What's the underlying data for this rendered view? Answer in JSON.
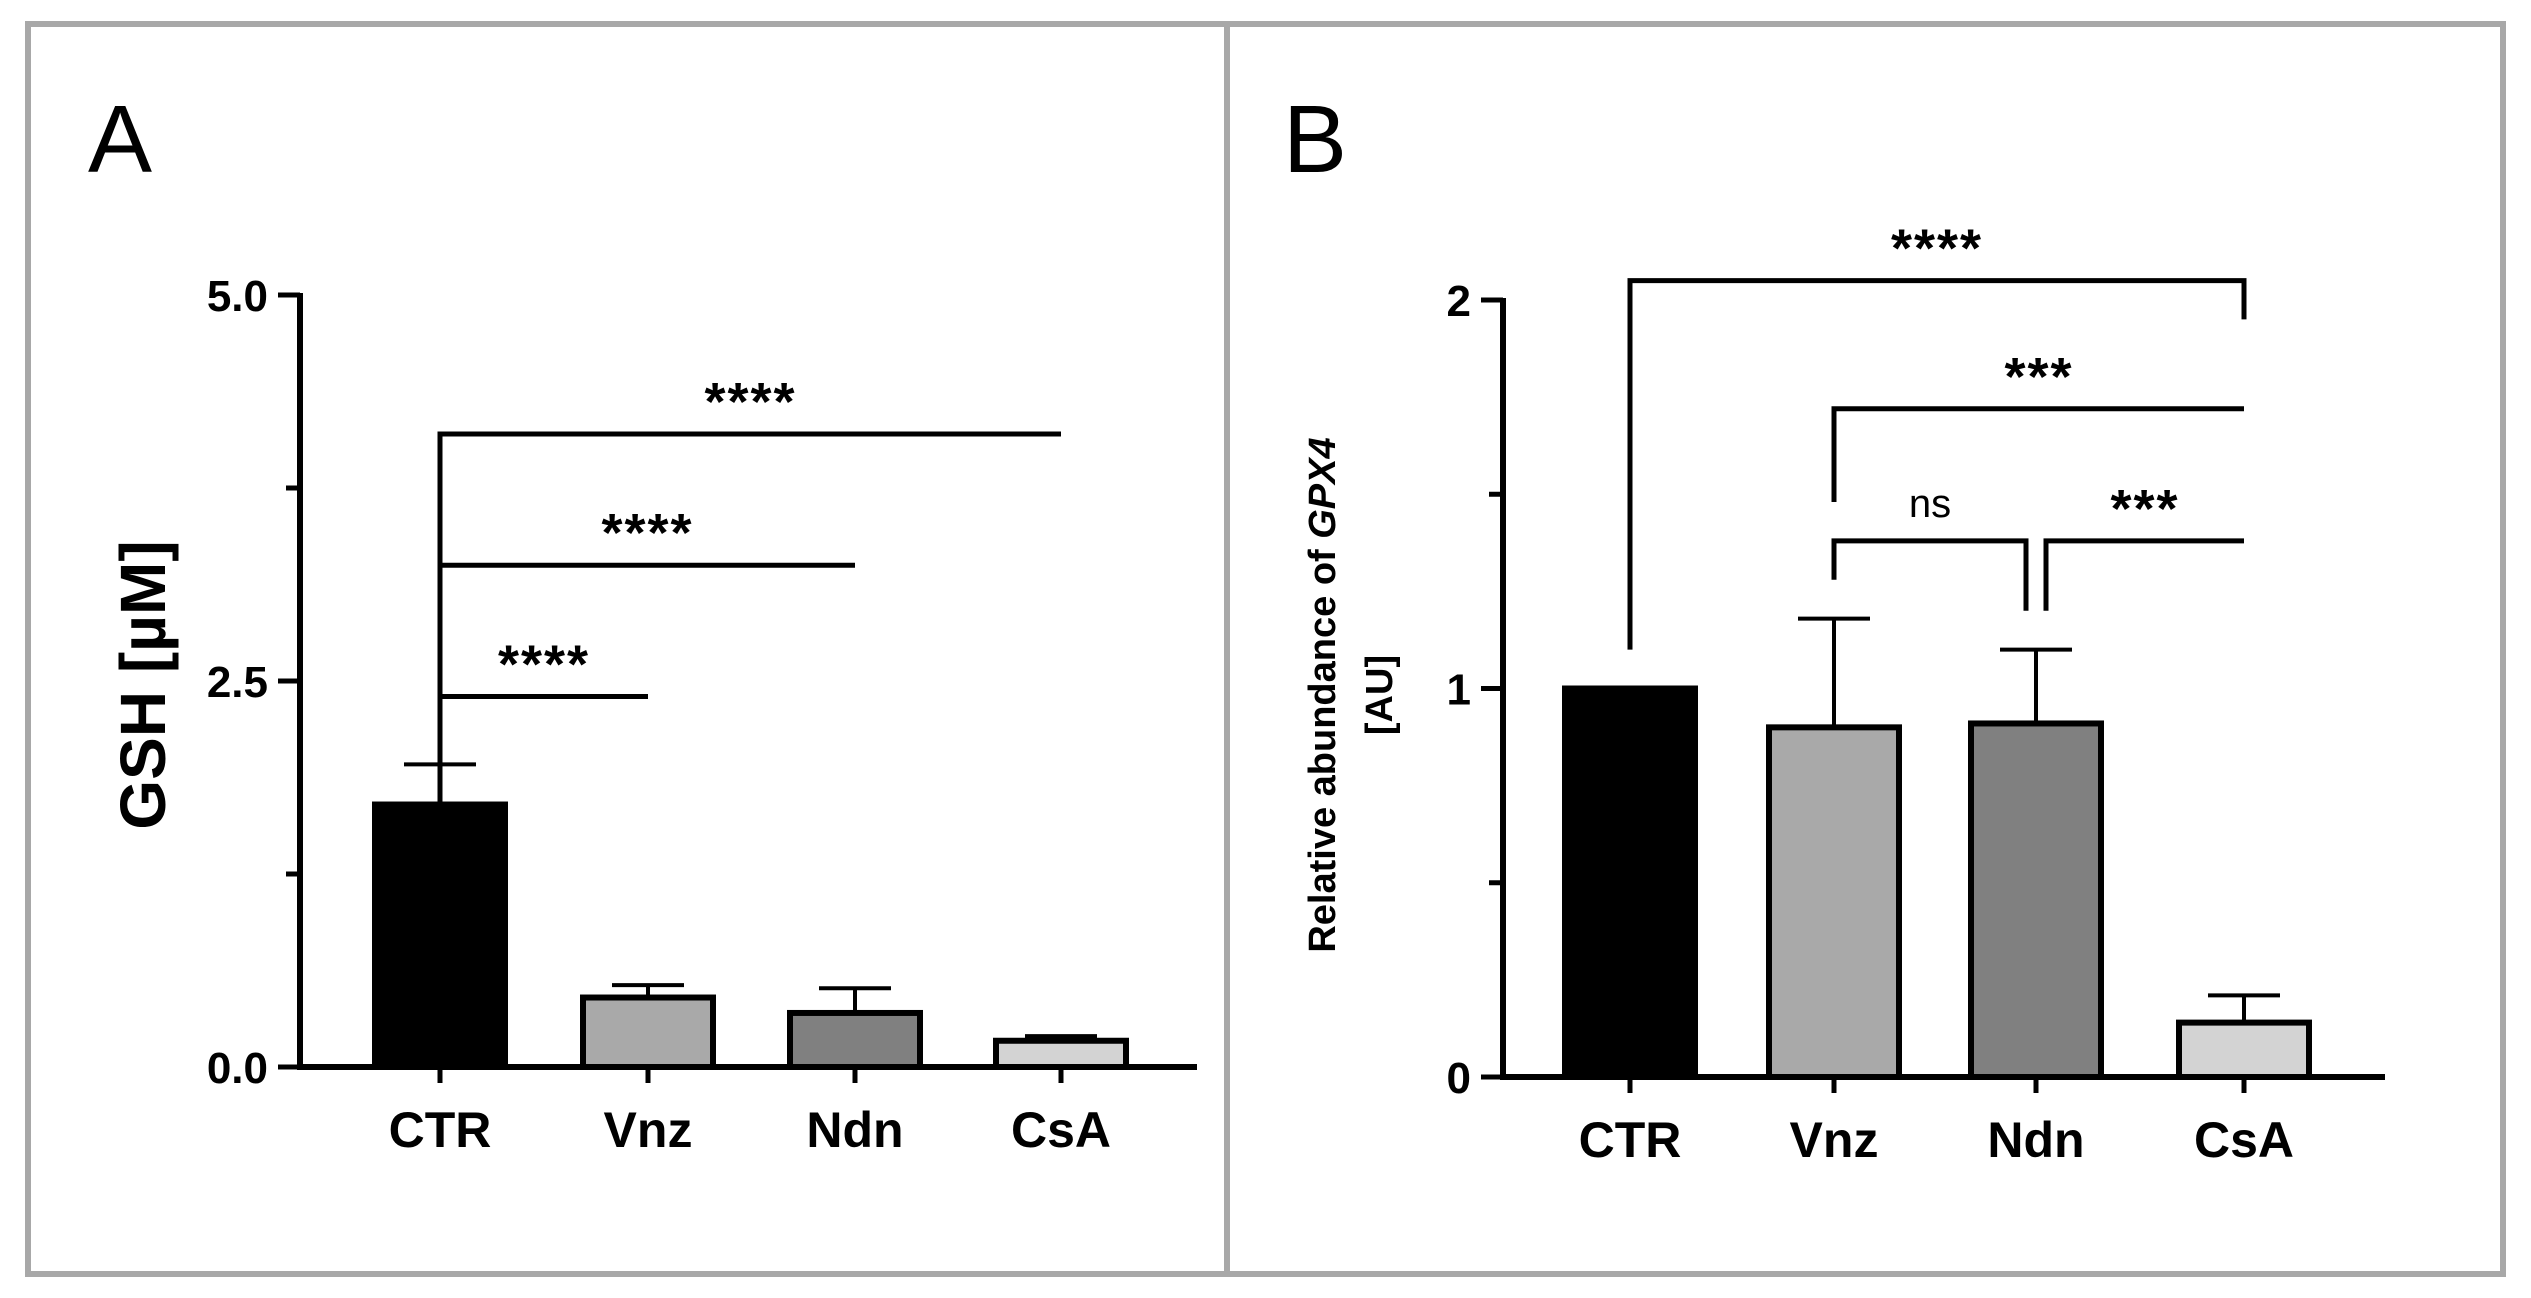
{
  "chart_data": [
    {
      "type": "bar",
      "panel_label": "A",
      "categories": [
        "CTR",
        "Vnz",
        "Ndn",
        "CsA"
      ],
      "values": [
        1.7,
        0.45,
        0.35,
        0.17
      ],
      "errors": [
        0.26,
        0.08,
        0.16,
        0.03
      ],
      "bar_colors": [
        "#000000",
        "#a9a9a9",
        "#808080",
        "#d3d3d3"
      ],
      "ylabel": "GSH [µM]",
      "ylim": [
        0,
        5.0
      ],
      "yticks": [
        0.0,
        2.5,
        5.0
      ],
      "ytick_labels": [
        "0.0",
        "2.5",
        "5.0"
      ],
      "minor_ticks_per_interval": 1,
      "significance": [
        {
          "from": "CTR",
          "to": "Vnz",
          "label": "****",
          "y": 2.4,
          "down": [
            0,
            2.4
          ]
        },
        {
          "from": "CTR",
          "to": "Ndn",
          "label": "****",
          "y": 3.25,
          "down": [
            0.35,
            3.25
          ]
        },
        {
          "from": "CTR",
          "to": "CsA",
          "label": "****",
          "y": 4.1,
          "down": [
            0.35,
            4.1
          ]
        }
      ]
    },
    {
      "type": "bar",
      "panel_label": "B",
      "categories": [
        "CTR",
        "Vnz",
        "Ndn",
        "CsA"
      ],
      "values": [
        1.0,
        0.9,
        0.91,
        0.14
      ],
      "errors": [
        0.0,
        0.28,
        0.19,
        0.07
      ],
      "bar_colors": [
        "#000000",
        "#a9a9a9",
        "#808080",
        "#d3d3d3"
      ],
      "ylabel_line1": "Relative abundance of ",
      "ylabel_gene": "GPX4",
      "ylabel_line2": "[AU]",
      "ylim": [
        0,
        2
      ],
      "yticks": [
        0,
        1,
        2
      ],
      "ytick_labels": [
        "0",
        "1",
        "2"
      ],
      "minor_ticks_per_interval": 1,
      "significance": [
        {
          "from": "CTR",
          "to": "CsA",
          "label": "****",
          "y": 2.05,
          "down": [
            1.1,
            1.95
          ]
        },
        {
          "from": "Vnz",
          "to": "CsA",
          "label": "***",
          "y": 1.72,
          "down": [
            1.48,
            1.72
          ]
        },
        {
          "from": "Vnz",
          "to": "Ndn",
          "label": "ns",
          "y": 1.38,
          "down": [
            1.28,
            1.2
          ]
        },
        {
          "from": "Ndn",
          "to": "CsA",
          "label": "***",
          "y": 1.38,
          "down": [
            1.2,
            1.38
          ]
        }
      ]
    }
  ]
}
